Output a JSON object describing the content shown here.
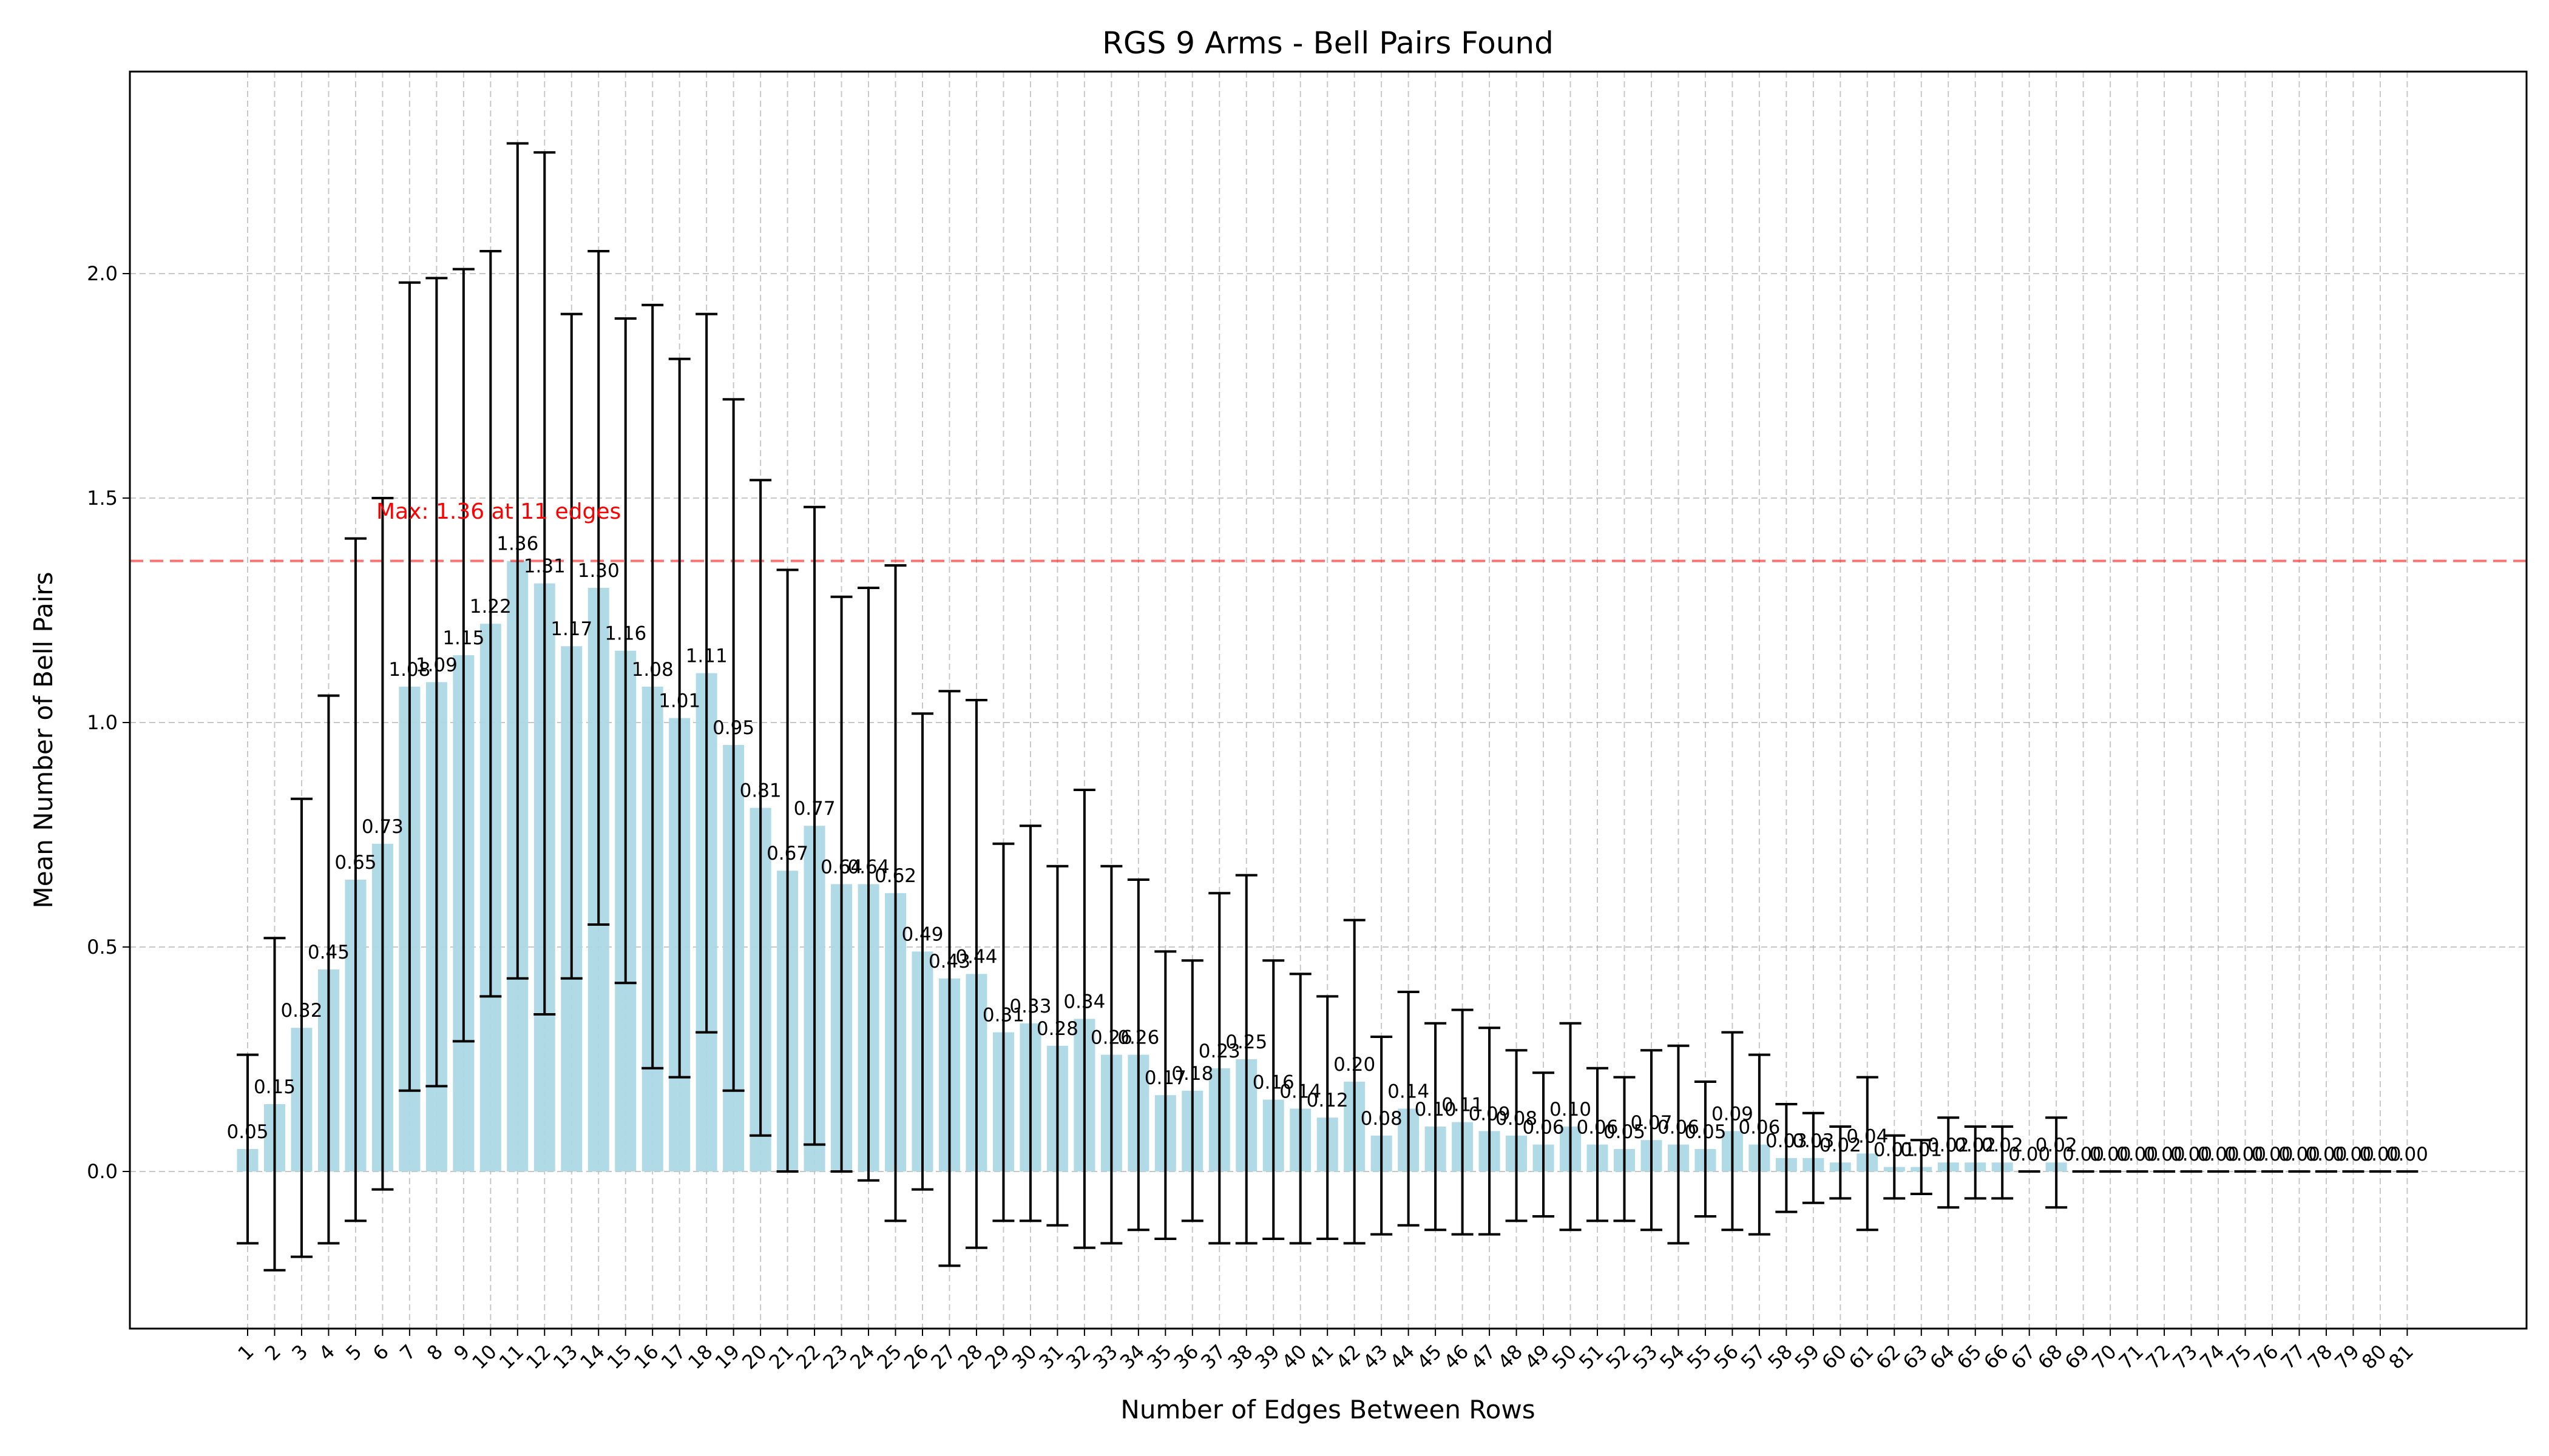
{
  "chart_data": {
    "type": "bar",
    "title": "RGS 9 Arms - Bell Pairs Found",
    "xlabel": "Number of Edges Between Rows",
    "ylabel": "Mean Number of Bell Pairs",
    "ylim": [
      -0.35,
      2.45
    ],
    "yticks": [
      "0.0",
      "0.5",
      "1.0",
      "1.5",
      "2.0"
    ],
    "grid": true,
    "bar_color": "#add8e6",
    "errorbar_color": "#000000",
    "categories": [
      "1",
      "2",
      "3",
      "4",
      "5",
      "6",
      "7",
      "8",
      "9",
      "10",
      "11",
      "12",
      "13",
      "14",
      "15",
      "16",
      "17",
      "18",
      "19",
      "20",
      "21",
      "22",
      "23",
      "24",
      "25",
      "26",
      "27",
      "28",
      "29",
      "30",
      "31",
      "32",
      "33",
      "34",
      "35",
      "36",
      "37",
      "38",
      "39",
      "40",
      "41",
      "42",
      "43",
      "44",
      "45",
      "46",
      "47",
      "48",
      "49",
      "50",
      "51",
      "52",
      "53",
      "54",
      "55",
      "56",
      "57",
      "58",
      "59",
      "60",
      "61",
      "62",
      "63",
      "64",
      "65",
      "66",
      "67",
      "68",
      "69",
      "70",
      "71",
      "72",
      "73",
      "74",
      "75",
      "76",
      "77",
      "78",
      "79",
      "80",
      "81"
    ],
    "values": [
      0.05,
      0.15,
      0.32,
      0.45,
      0.65,
      0.73,
      1.08,
      1.09,
      1.15,
      1.22,
      1.36,
      1.31,
      1.17,
      1.3,
      1.16,
      1.08,
      1.01,
      1.11,
      0.95,
      0.81,
      0.67,
      0.77,
      0.64,
      0.64,
      0.62,
      0.49,
      0.43,
      0.44,
      0.31,
      0.33,
      0.28,
      0.34,
      0.26,
      0.26,
      0.17,
      0.18,
      0.23,
      0.25,
      0.16,
      0.14,
      0.12,
      0.2,
      0.08,
      0.14,
      0.1,
      0.11,
      0.09,
      0.08,
      0.06,
      0.1,
      0.06,
      0.05,
      0.07,
      0.06,
      0.05,
      0.09,
      0.06,
      0.03,
      0.03,
      0.02,
      0.04,
      0.01,
      0.01,
      0.02,
      0.02,
      0.02,
      0.0,
      0.02,
      0.0,
      0.0,
      0.0,
      0.0,
      0.0,
      0.0,
      0.0,
      0.0,
      0.0,
      0.0,
      0.0,
      0.0,
      0.0
    ],
    "errors": [
      0.21,
      0.37,
      0.51,
      0.61,
      0.76,
      0.77,
      0.9,
      0.9,
      0.86,
      0.83,
      0.93,
      0.96,
      0.74,
      0.75,
      0.74,
      0.85,
      0.8,
      0.8,
      0.77,
      0.73,
      0.67,
      0.71,
      0.64,
      0.66,
      0.73,
      0.53,
      0.64,
      0.61,
      0.42,
      0.44,
      0.4,
      0.51,
      0.42,
      0.39,
      0.32,
      0.29,
      0.39,
      0.41,
      0.31,
      0.3,
      0.27,
      0.36,
      0.22,
      0.26,
      0.23,
      0.25,
      0.23,
      0.19,
      0.16,
      0.23,
      0.17,
      0.16,
      0.2,
      0.22,
      0.15,
      0.22,
      0.2,
      0.12,
      0.1,
      0.08,
      0.17,
      0.07,
      0.06,
      0.1,
      0.08,
      0.08,
      0.0,
      0.1,
      0.0,
      0.0,
      0.0,
      0.0,
      0.0,
      0.0,
      0.0,
      0.0,
      0.0,
      0.0,
      0.0,
      0.0,
      0.0
    ],
    "value_labels": [
      "0.05",
      "0.15",
      "0.32",
      "0.45",
      "0.65",
      "0.73",
      "1.08",
      "1.09",
      "1.15",
      "1.22",
      "1.36",
      "1.31",
      "1.17",
      "1.30",
      "1.16",
      "1.08",
      "1.01",
      "1.11",
      "0.95",
      "0.81",
      "0.67",
      "0.77",
      "0.64",
      "0.64",
      "0.62",
      "0.49",
      "0.43",
      "0.44",
      "0.31",
      "0.33",
      "0.28",
      "0.34",
      "0.26",
      "0.26",
      "0.17",
      "0.18",
      "0.23",
      "0.25",
      "0.16",
      "0.14",
      "0.12",
      "0.20",
      "0.08",
      "0.14",
      "0.10",
      "0.11",
      "0.09",
      "0.08",
      "0.06",
      "0.10",
      "0.06",
      "0.05",
      "0.07",
      "0.06",
      "0.05",
      "0.09",
      "0.06",
      "0.03",
      "0.03",
      "0.02",
      "0.04",
      "0.01",
      "0.01",
      "0.02",
      "0.02",
      "0.02",
      "0.00",
      "0.02",
      "0.00",
      "0.00",
      "0.00",
      "0.00",
      "0.00",
      "0.00",
      "0.00",
      "0.00",
      "0.00",
      "0.00",
      "0.00",
      "0.00",
      "0.00"
    ],
    "max_line": {
      "value": 1.36,
      "label": "Max: 1.36 at 11 edges",
      "color": "#ff0000"
    }
  }
}
